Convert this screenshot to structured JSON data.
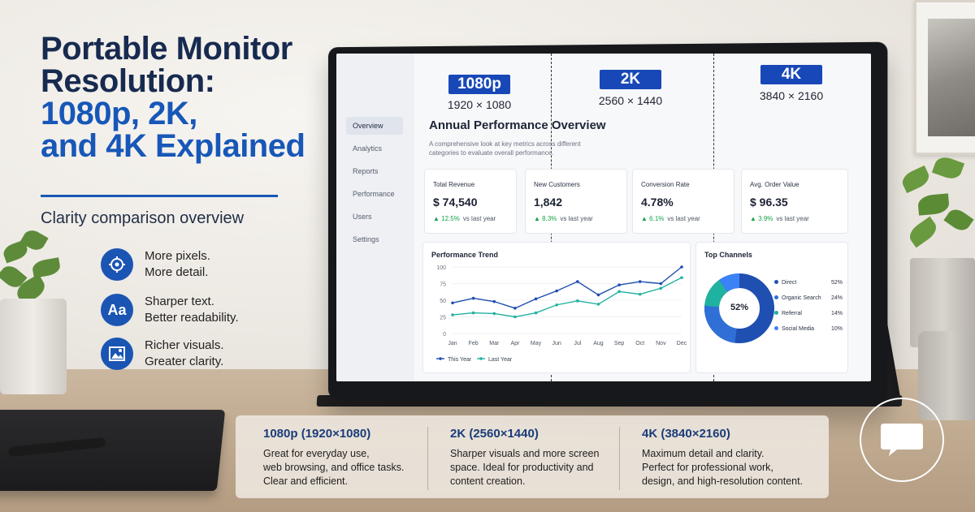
{
  "heading": {
    "line1": "Portable Monitor",
    "line2": "Resolution:",
    "line3": "1080p, 2K,",
    "line4": "and 4K Explained",
    "subtitle": "Clarity comparison overview"
  },
  "features": [
    {
      "icon": "target-icon",
      "line1": "More pixels.",
      "line2": "More detail."
    },
    {
      "icon": "text-aa-icon",
      "icon_text": "Aa",
      "line1": "Sharper text.",
      "line2": "Better readability."
    },
    {
      "icon": "image-icon",
      "line1": "Richer visuals.",
      "line2": "Greater clarity."
    }
  ],
  "resolutions": [
    {
      "badge": "1080p",
      "dims": "1920 × 1080"
    },
    {
      "badge": "2K",
      "dims": "2560 × 1440"
    },
    {
      "badge": "4K",
      "dims": "3840 × 2160"
    }
  ],
  "dashboard": {
    "sidebar": [
      "Overview",
      "Analytics",
      "Reports",
      "Performance",
      "Users",
      "Settings"
    ],
    "title": "Annual Performance Overview",
    "description": "A comprehensive look at key metrics across different categories to evaluate overall performance.",
    "kpis": [
      {
        "label": "Total Revenue",
        "value": "$ 74,540",
        "change": "▲ 12.5%",
        "vs": "vs last year"
      },
      {
        "label": "New Customers",
        "value": "1,842",
        "change": "▲ 8.3%",
        "vs": "vs last year"
      },
      {
        "label": "Conversion Rate",
        "value": "4.78%",
        "change": "▲ 6.1%",
        "vs": "vs last year"
      },
      {
        "label": "Avg. Order Value",
        "value": "$ 96.35",
        "change": "▲ 3.9%",
        "vs": "vs last year"
      }
    ],
    "trend": {
      "title": "Performance Trend",
      "legend_this": "This Year",
      "legend_last": "Last Year"
    },
    "channels": {
      "title": "Top Channels",
      "center": "52%",
      "items": [
        {
          "name": "Direct",
          "pct": "52%",
          "color": "#1f4fb0"
        },
        {
          "name": "Organic Search",
          "pct": "24%",
          "color": "#2f6fd6"
        },
        {
          "name": "Referral",
          "pct": "14%",
          "color": "#20b2a0"
        },
        {
          "name": "Social Media",
          "pct": "10%",
          "color": "#3b82f6"
        }
      ]
    }
  },
  "chart_data": {
    "type": "line",
    "title": "Performance Trend",
    "categories": [
      "Jan",
      "Feb",
      "Mar",
      "Apr",
      "May",
      "Jun",
      "Jul",
      "Aug",
      "Sep",
      "Oct",
      "Nov",
      "Dec"
    ],
    "yticks": [
      0,
      25,
      50,
      75,
      100
    ],
    "ylim": [
      0,
      100
    ],
    "series": [
      {
        "name": "This Year",
        "color": "#1f4fb0",
        "values": [
          46,
          53,
          48,
          38,
          52,
          64,
          78,
          58,
          73,
          78,
          75,
          100
        ]
      },
      {
        "name": "Last Year",
        "color": "#20b2a0",
        "values": [
          28,
          31,
          30,
          25,
          31,
          43,
          49,
          44,
          63,
          59,
          68,
          84
        ]
      }
    ],
    "legend": "bottom-left"
  },
  "info": [
    {
      "title": "1080p (1920×1080)",
      "body": [
        "Great for everyday use,",
        "web browsing, and office tasks.",
        "Clear and efficient."
      ]
    },
    {
      "title": "2K (2560×1440)",
      "body": [
        "Sharper visuals and more screen",
        "space. Ideal for productivity and",
        "content creation."
      ]
    },
    {
      "title": "4K (3840×2160)",
      "body": [
        "Maximum detail and clarity.",
        "Perfect for professional work,",
        "design, and high-resolution content."
      ]
    }
  ],
  "colors": {
    "brand_blue": "#1757b8",
    "navy": "#172a4f",
    "positive": "#16a34a"
  }
}
